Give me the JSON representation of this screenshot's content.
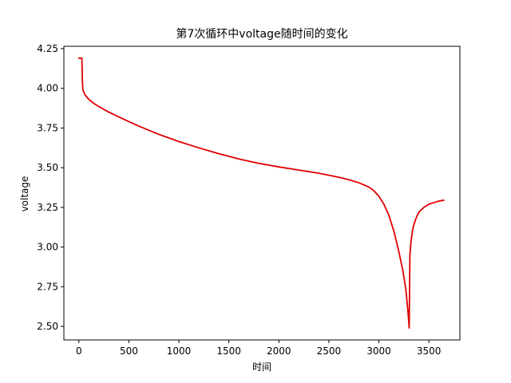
{
  "chart_data": {
    "type": "line",
    "title": "第7次循环中voltage随时间的变化",
    "xlabel": "时间",
    "ylabel": "voltage",
    "xlim": [
      -150,
      3810
    ],
    "ylim": [
      2.415,
      4.265
    ],
    "xticks": [
      0,
      500,
      1000,
      1500,
      2000,
      2500,
      3000,
      3500
    ],
    "xtick_labels": [
      "0",
      "500",
      "1000",
      "1500",
      "2000",
      "2500",
      "3000",
      "3500"
    ],
    "yticks": [
      2.5,
      2.75,
      3.0,
      3.25,
      3.5,
      3.75,
      4.0,
      4.25
    ],
    "ytick_labels": [
      "2.50",
      "2.75",
      "3.00",
      "3.25",
      "3.50",
      "3.75",
      "4.00",
      "4.25"
    ],
    "grid": false,
    "legend": "none",
    "series": [
      {
        "color": "#e00000",
        "x": [
          0,
          30,
          35,
          40,
          60,
          100,
          150,
          200,
          300,
          400,
          500,
          600,
          800,
          1000,
          1200,
          1400,
          1600,
          1800,
          2000,
          2200,
          2400,
          2600,
          2700,
          2800,
          2900,
          2950,
          3000,
          3050,
          3100,
          3150,
          3200,
          3240,
          3270,
          3290,
          3303,
          3310,
          3320,
          3340,
          3370,
          3400,
          3450,
          3500,
          3550,
          3600,
          3650
        ],
        "y": [
          4.19,
          4.19,
          4.05,
          3.99,
          3.96,
          3.93,
          3.905,
          3.885,
          3.85,
          3.82,
          3.79,
          3.762,
          3.71,
          3.665,
          3.625,
          3.588,
          3.555,
          3.527,
          3.505,
          3.485,
          3.465,
          3.44,
          3.424,
          3.405,
          3.378,
          3.355,
          3.32,
          3.27,
          3.2,
          3.1,
          2.97,
          2.85,
          2.73,
          2.6,
          2.49,
          2.95,
          3.03,
          3.12,
          3.18,
          3.22,
          3.25,
          3.27,
          3.28,
          3.29,
          3.295
        ]
      }
    ]
  }
}
